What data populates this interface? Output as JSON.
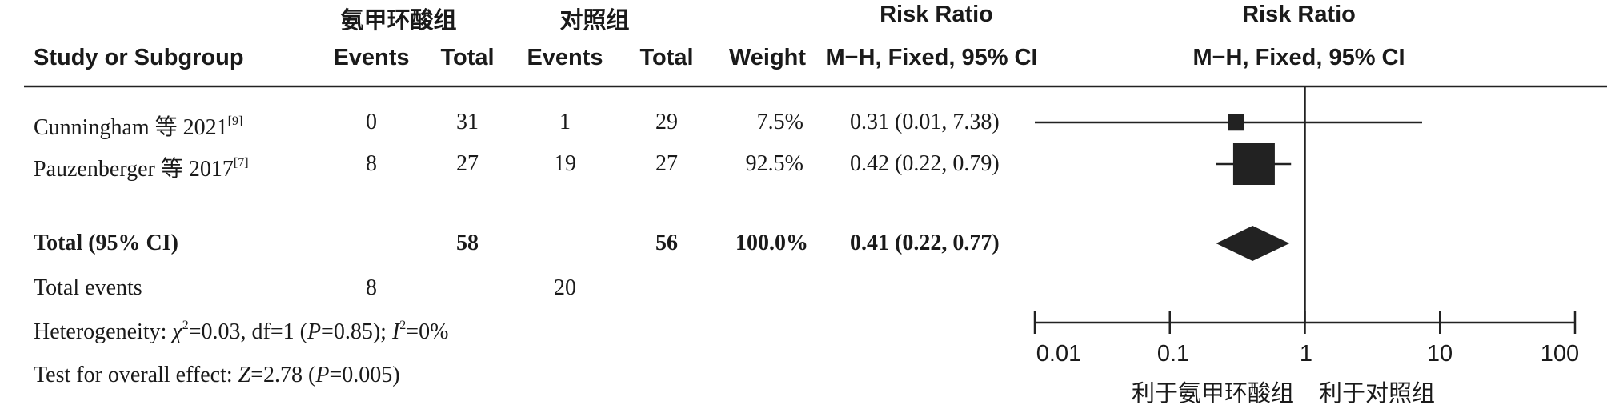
{
  "header": {
    "group1_name": "氨甲环酸组",
    "group2_name": "对照组",
    "risk_ratio": "Risk Ratio",
    "risk_ratio_plot": "Risk Ratio",
    "study_col": "Study or Subgroup",
    "events": "Events",
    "total": "Total",
    "weight": "Weight",
    "method": "M−H, Fixed, 95% CI",
    "method_plot": "M−H, Fixed, 95% CI"
  },
  "studies": [
    {
      "name": "Cunningham 等 2021",
      "ref": "[9]",
      "e1": "0",
      "t1": "31",
      "e2": "1",
      "t2": "29",
      "weight": "7.5%",
      "ci_text": "0.31 (0.01, 7.38)"
    },
    {
      "name": "Pauzenberger 等 2017",
      "ref": "[7]",
      "e1": "8",
      "t1": "27",
      "e2": "19",
      "t2": "27",
      "weight": "92.5%",
      "ci_text": "0.42 (0.22, 0.79)"
    }
  ],
  "total": {
    "label": "Total (95% CI)",
    "t1": "58",
    "t2": "56",
    "weight": "100.0%",
    "ci_text": "0.41 (0.22, 0.77)"
  },
  "total_events": {
    "label": "Total events",
    "e1": "8",
    "e2": "20"
  },
  "heterogeneity": {
    "prefix": "Heterogeneity: ",
    "chi": "χ",
    "chi_sup": "2",
    "chi_val": "=0.03, df=1 (",
    "p": "P",
    "p_val": "=0.85); ",
    "i": "I",
    "i_sup": "2",
    "i_val": "=0%"
  },
  "overall_effect": {
    "prefix": "Test for overall effect: ",
    "z": "Z",
    "z_val": "=2.78 (",
    "p": "P",
    "p_val": "=0.005)"
  },
  "axis": {
    "ticks": [
      "0.01",
      "0.1",
      "1",
      "10",
      "100"
    ],
    "favours_left": "利于氨甲环酸组",
    "favours_right": "利于对照组"
  },
  "chart_data": {
    "type": "forest",
    "scale": "log",
    "xlim": [
      0.01,
      100
    ],
    "null_value": 1,
    "studies": [
      {
        "name": "Cunningham 等 2021",
        "rr": 0.31,
        "lower": 0.01,
        "upper": 7.38,
        "weight": 7.5
      },
      {
        "name": "Pauzenberger 等 2017",
        "rr": 0.42,
        "lower": 0.22,
        "upper": 0.79,
        "weight": 92.5
      }
    ],
    "pooled": {
      "rr": 0.41,
      "lower": 0.22,
      "upper": 0.77
    },
    "ink": "#222222"
  }
}
